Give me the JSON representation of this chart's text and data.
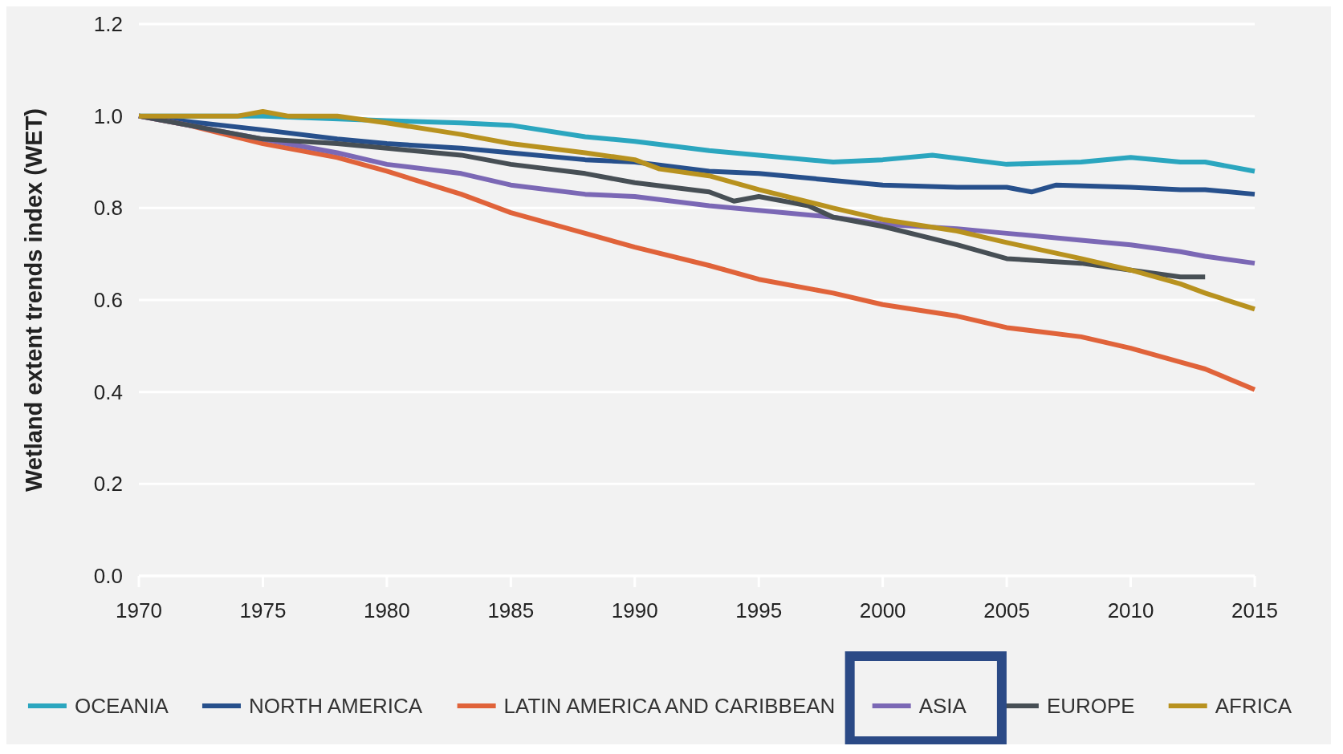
{
  "chart_data": {
    "type": "line",
    "ylabel": "Wetland extent trends index (WET)",
    "xlim": [
      1970,
      2015
    ],
    "xticks": [
      1970,
      1975,
      1980,
      1985,
      1990,
      1995,
      2000,
      2005,
      2010,
      2015
    ],
    "ylim": [
      0,
      1.2
    ],
    "yticks": [
      {
        "value": 0,
        "label": "0.0"
      },
      0.2,
      0.4,
      0.6,
      0.8,
      {
        "value": 1,
        "label": "1.0"
      },
      1.2
    ],
    "grid": "y",
    "legend": "bottom",
    "line_style": "solid",
    "series": [
      {
        "name": "OCEANIA",
        "color": "#2ba6bf",
        "x": [
          1970,
          1975,
          1980,
          1983,
          1985,
          1988,
          1990,
          1993,
          1995,
          1998,
          2000,
          2002,
          2005,
          2008,
          2010,
          2012,
          2013,
          2015
        ],
        "values": [
          1.0,
          1.0,
          0.99,
          0.985,
          0.98,
          0.955,
          0.945,
          0.925,
          0.915,
          0.9,
          0.905,
          0.915,
          0.895,
          0.9,
          0.91,
          0.9,
          0.9,
          0.88
        ]
      },
      {
        "name": "NORTH AMERICA",
        "color": "#27508c",
        "x": [
          1970,
          1975,
          1978,
          1980,
          1983,
          1985,
          1988,
          1990,
          1993,
          1995,
          1998,
          2000,
          2003,
          2005,
          2006,
          2007,
          2010,
          2012,
          2013,
          2015
        ],
        "values": [
          1.0,
          0.97,
          0.95,
          0.94,
          0.93,
          0.92,
          0.905,
          0.9,
          0.88,
          0.875,
          0.86,
          0.85,
          0.845,
          0.845,
          0.835,
          0.85,
          0.845,
          0.84,
          0.84,
          0.83
        ]
      },
      {
        "name": "LATIN AMERICA AND CARIBBEAN",
        "color": "#e0633a",
        "x": [
          1970,
          1972,
          1975,
          1978,
          1980,
          1983,
          1985,
          1988,
          1990,
          1993,
          1995,
          1998,
          2000,
          2003,
          2005,
          2008,
          2010,
          2012,
          2013,
          2015
        ],
        "values": [
          1.0,
          0.98,
          0.94,
          0.91,
          0.88,
          0.83,
          0.79,
          0.745,
          0.715,
          0.675,
          0.645,
          0.615,
          0.59,
          0.565,
          0.54,
          0.52,
          0.495,
          0.465,
          0.45,
          0.405
        ]
      },
      {
        "name": "ASIA",
        "color": "#7b68b5",
        "x": [
          1970,
          1975,
          1978,
          1980,
          1983,
          1985,
          1988,
          1990,
          1993,
          1995,
          1998,
          2000,
          2003,
          2005,
          2008,
          2010,
          2012,
          2013,
          2015
        ],
        "values": [
          1.0,
          0.95,
          0.92,
          0.895,
          0.875,
          0.85,
          0.83,
          0.825,
          0.805,
          0.795,
          0.78,
          0.765,
          0.755,
          0.745,
          0.73,
          0.72,
          0.705,
          0.695,
          0.68
        ]
      },
      {
        "name": "EUROPE",
        "color": "#474f55",
        "x": [
          1970,
          1975,
          1978,
          1980,
          1983,
          1985,
          1988,
          1990,
          1993,
          1994,
          1995,
          1997,
          1998,
          2000,
          2003,
          2005,
          2008,
          2010,
          2012,
          2013
        ],
        "values": [
          1.0,
          0.95,
          0.94,
          0.93,
          0.915,
          0.895,
          0.875,
          0.855,
          0.835,
          0.815,
          0.825,
          0.805,
          0.78,
          0.76,
          0.72,
          0.69,
          0.68,
          0.665,
          0.65,
          0.65
        ]
      },
      {
        "name": "AFRICA",
        "color": "#b8921f",
        "x": [
          1970,
          1974,
          1975,
          1976,
          1978,
          1980,
          1983,
          1985,
          1988,
          1990,
          1991,
          1993,
          1995,
          1998,
          2000,
          2003,
          2005,
          2008,
          2010,
          2012,
          2013,
          2015
        ],
        "values": [
          1.0,
          1.0,
          1.01,
          1.0,
          1.0,
          0.985,
          0.96,
          0.94,
          0.92,
          0.905,
          0.885,
          0.87,
          0.84,
          0.8,
          0.775,
          0.75,
          0.725,
          0.69,
          0.665,
          0.635,
          0.615,
          0.58
        ]
      }
    ]
  }
}
